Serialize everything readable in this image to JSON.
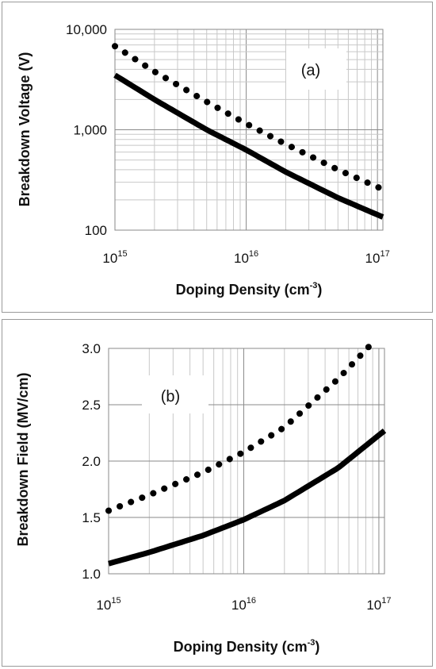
{
  "chart_data": [
    {
      "type": "line",
      "panel_label": "(a)",
      "xlabel": {
        "base": "Doping Density (cm",
        "sup": "-3",
        "tail": ")"
      },
      "ylabel": "Breakdown Voltage (V)",
      "x_scale": "log",
      "y_scale": "log",
      "xlim": [
        1000000000000000.0,
        1.1e+17
      ],
      "ylim": [
        100,
        10000
      ],
      "x_ticks": [
        {
          "base": "10",
          "exp": "15",
          "value": 1000000000000000.0
        },
        {
          "base": "10",
          "exp": "16",
          "value": 1e+16
        },
        {
          "base": "10",
          "exp": "17",
          "value": 1e+17
        }
      ],
      "y_ticks": [
        {
          "label": "100",
          "value": 100
        },
        {
          "label": "1,000",
          "value": 1000
        },
        {
          "label": "10,000",
          "value": 10000
        }
      ],
      "grid": true,
      "series": [
        {
          "style": "solid",
          "color": "#000000",
          "x": [
            1000000000000000.0,
            2000000000000000.0,
            5000000000000000.0,
            1e+16,
            2e+16,
            5e+16,
            1.1e+17
          ],
          "y": [
            3500,
            2000,
            1000,
            630,
            380,
            210,
            135
          ]
        },
        {
          "style": "dotted",
          "color": "#000000",
          "x": [
            1000000000000000.0,
            2000000000000000.0,
            5000000000000000.0,
            1e+16,
            2e+16,
            5e+16,
            1.1e+17
          ],
          "y": [
            6800,
            3800,
            1900,
            1150,
            720,
            400,
            255
          ]
        }
      ]
    },
    {
      "type": "line",
      "panel_label": "(b)",
      "xlabel": {
        "base": "Doping Density (cm",
        "sup": "-3",
        "tail": ")"
      },
      "ylabel": "Breakdown Field (MV/cm)",
      "x_scale": "log",
      "y_scale": "linear",
      "xlim": [
        1000000000000000.0,
        1.1e+17
      ],
      "ylim": [
        1.0,
        3.0
      ],
      "x_ticks": [
        {
          "base": "10",
          "exp": "15",
          "value": 1000000000000000.0
        },
        {
          "base": "10",
          "exp": "16",
          "value": 1e+16
        },
        {
          "base": "10",
          "exp": "17",
          "value": 1e+17
        }
      ],
      "y_ticks": [
        {
          "label": "1.0",
          "value": 1.0
        },
        {
          "label": "1.5",
          "value": 1.5
        },
        {
          "label": "2.0",
          "value": 2.0
        },
        {
          "label": "2.5",
          "value": 2.5
        },
        {
          "label": "3.0",
          "value": 3.0
        }
      ],
      "grid": true,
      "series": [
        {
          "style": "solid",
          "color": "#000000",
          "x": [
            1000000000000000.0,
            2000000000000000.0,
            5000000000000000.0,
            1e+16,
            2e+16,
            5e+16,
            1.1e+17
          ],
          "y": [
            1.09,
            1.19,
            1.34,
            1.48,
            1.65,
            1.94,
            2.27
          ]
        },
        {
          "style": "dotted",
          "color": "#000000",
          "x": [
            1000000000000000.0,
            2000000000000000.0,
            5000000000000000.0,
            1e+16,
            2e+16,
            5e+16,
            8.5e+16
          ],
          "y": [
            1.56,
            1.7,
            1.9,
            2.08,
            2.3,
            2.73,
            3.02
          ]
        }
      ]
    }
  ]
}
